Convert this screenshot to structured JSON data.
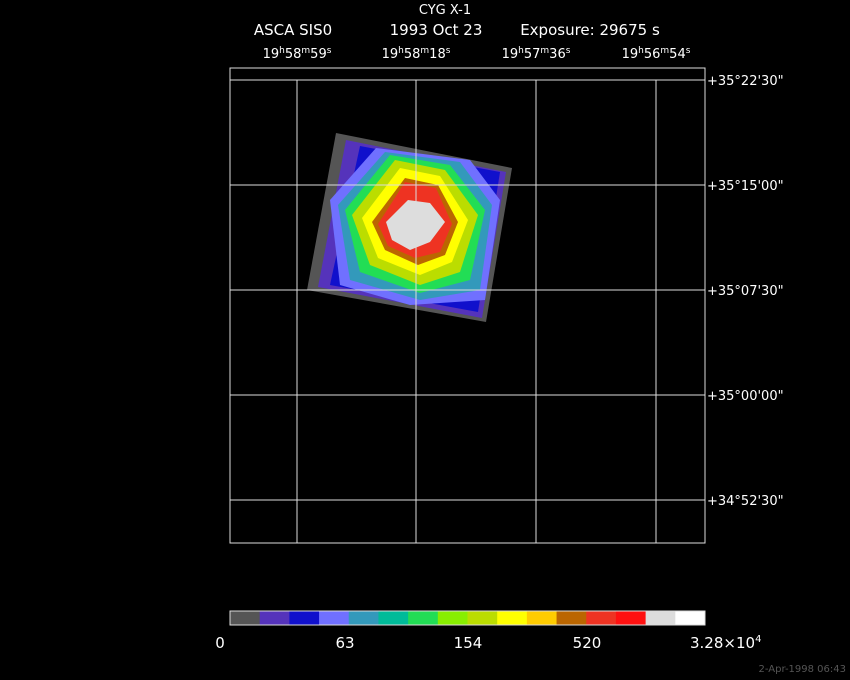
{
  "header": {
    "title": "CYG X-1",
    "subtitle": [
      "ASCA SIS0",
      "1993 Oct 23",
      "Exposure: 29675 s"
    ]
  },
  "ra_labels": [
    [
      "19",
      "h",
      "58",
      "m",
      "59",
      "s"
    ],
    [
      "19",
      "h",
      "58",
      "m",
      "18",
      "s"
    ],
    [
      "19",
      "h",
      "57",
      "m",
      "36",
      "s"
    ],
    [
      "19",
      "h",
      "56",
      "m",
      "54",
      "s"
    ]
  ],
  "dec_labels": [
    "+35°22'30\"",
    "+35°15'00\"",
    "+35°07'30\"",
    "+35°00'00\"",
    "+34°52'30\""
  ],
  "colorbar": {
    "colors": [
      "#555555",
      "#5533bb",
      "#1010cc",
      "#7070ff",
      "#3399bb",
      "#00bb99",
      "#22dd55",
      "#88ee00",
      "#bbdd00",
      "#ffff00",
      "#ffcc00",
      "#bb6600",
      "#ee3322",
      "#ff1010",
      "#dddddd",
      "#ffffff"
    ],
    "labels": [
      "0",
      "63",
      "154",
      "520"
    ],
    "max_label": "3.28×10",
    "max_exponent": "4"
  },
  "timestamp": "2-Apr-1998 06:43"
}
